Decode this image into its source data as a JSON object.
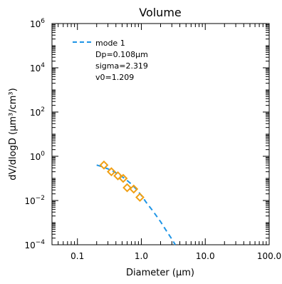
{
  "chart_data": {
    "type": "scatter",
    "title": "Volume",
    "xlabel": "Diameter (μm)",
    "ylabel": "dV/dlogD (μm³/cm³)",
    "x_scale": "log",
    "y_scale": "log",
    "xlim": [
      0.04,
      100
    ],
    "ylim": [
      0.0001,
      1000000
    ],
    "x_ticks": [
      0.1,
      1.0,
      10.0,
      100.0
    ],
    "x_tick_labels": [
      "0.1",
      "1.0",
      "10.0",
      "100.0"
    ],
    "y_ticks": [
      0.0001,
      0.01,
      1,
      100,
      10000,
      1000000
    ],
    "y_tick_labels": [
      {
        "base": "10",
        "exp": "−4"
      },
      {
        "base": "10",
        "exp": "−2"
      },
      {
        "base": "10",
        "exp": "0"
      },
      {
        "base": "10",
        "exp": "2"
      },
      {
        "base": "10",
        "exp": "4"
      },
      {
        "base": "10",
        "exp": "6"
      }
    ],
    "grid": false,
    "legend": {
      "position": "top-left",
      "entries": [
        {
          "label": "mode 1",
          "style": "dashed",
          "color": "#1f95e6"
        }
      ],
      "text_lines": [
        "Dp=0.108μm",
        "sigma=2.319",
        "v0=1.209"
      ]
    },
    "series": [
      {
        "name": "mode 1",
        "kind": "line",
        "style": "dashed",
        "color": "#1f95e6",
        "x": [
          0.2,
          0.25,
          0.3,
          0.4,
          0.5,
          0.6,
          0.7,
          0.8,
          0.9,
          1.0,
          1.2,
          1.5,
          2.0,
          2.5,
          3.0,
          3.4
        ],
        "y": [
          0.4,
          0.33,
          0.27,
          0.18,
          0.12,
          0.08,
          0.055,
          0.037,
          0.025,
          0.017,
          0.008,
          0.0035,
          0.0011,
          0.0004,
          0.00018,
          0.0001
        ]
      },
      {
        "name": "",
        "kind": "markers",
        "marker": "diamond",
        "color": "#f0a015",
        "x": [
          0.26,
          0.34,
          0.43,
          0.52,
          0.6,
          0.76,
          0.95
        ],
        "y": [
          0.4,
          0.2,
          0.13,
          0.1,
          0.038,
          0.033,
          0.014
        ]
      }
    ]
  }
}
